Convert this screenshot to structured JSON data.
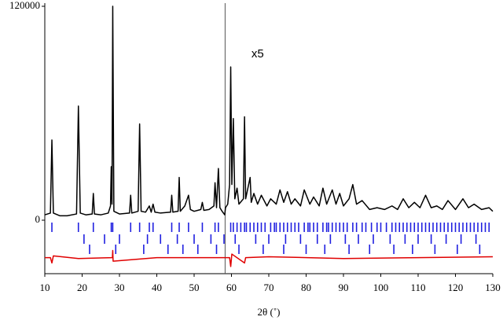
{
  "chart_data": {
    "type": "line",
    "xlabel": "2θ (˚)",
    "xlim": [
      10,
      130
    ],
    "xticks": [
      10,
      20,
      30,
      40,
      50,
      60,
      70,
      80,
      90,
      100,
      110,
      120,
      130
    ],
    "ylim": [
      -30000,
      120000
    ],
    "yticks": [
      0,
      120000
    ],
    "scale_break": 58.3,
    "annotation": {
      "text": "x5",
      "x": 67,
      "y": 93000
    },
    "series": [
      {
        "color": "#000000",
        "x": [
          10,
          11.5,
          11.9,
          12.3,
          14,
          16,
          18.5,
          19,
          19.5,
          21,
          22.7,
          23,
          23.3,
          25,
          27,
          27.6,
          27.8,
          28,
          28.2,
          28.5,
          30,
          32.7,
          33,
          33.3,
          35,
          35.4,
          35.8,
          37,
          38,
          38.5,
          39,
          39.5,
          41,
          43.7,
          44,
          44.3,
          45.7,
          46,
          46.3,
          47.5,
          48.5,
          49,
          50,
          51.8,
          52.2,
          52.6,
          54,
          55.3,
          55.6,
          56,
          56.5,
          56.9,
          57.5,
          58.2,
          58.4,
          59,
          59.5,
          59.8,
          60.1,
          60.5,
          60.9,
          61.5,
          62,
          63.2,
          63.5,
          63.8,
          65,
          65.3,
          66,
          67,
          68,
          69.5,
          70.5,
          72,
          73,
          74,
          75,
          76,
          77,
          78.5,
          79.5,
          81,
          82,
          83.5,
          84.5,
          85.5,
          87,
          88,
          89,
          90,
          91.5,
          92.5,
          93.5,
          95,
          97,
          99,
          101,
          103,
          104.5,
          106,
          107.5,
          109,
          110.5,
          112,
          113.5,
          115,
          116.5,
          118,
          120,
          122,
          123.5,
          125,
          127,
          129,
          130
        ],
        "values": [
          3000,
          4000,
          45000,
          4000,
          2500,
          2500,
          3500,
          64000,
          4000,
          3000,
          3500,
          15000,
          3500,
          3000,
          4000,
          8000,
          30000,
          9000,
          120000,
          5000,
          3500,
          4000,
          14000,
          4000,
          5000,
          54000,
          5000,
          4500,
          8000,
          4500,
          9000,
          4500,
          4000,
          4500,
          14000,
          4500,
          5000,
          24000,
          5000,
          8000,
          14000,
          6000,
          5000,
          6000,
          10000,
          5500,
          6000,
          8000,
          21000,
          7000,
          29000,
          7000,
          5000,
          3000,
          7000,
          9000,
          20000,
          86000,
          20000,
          57000,
          12000,
          18000,
          9000,
          12000,
          58000,
          12000,
          24000,
          10000,
          15000,
          9000,
          14000,
          8000,
          12000,
          9000,
          17000,
          10000,
          16000,
          9000,
          12000,
          8000,
          17000,
          9000,
          13000,
          8000,
          18000,
          9000,
          17000,
          9000,
          15000,
          8000,
          12000,
          20000,
          9000,
          11000,
          6000,
          7000,
          6000,
          8000,
          6000,
          12000,
          7000,
          10000,
          7000,
          14000,
          7000,
          8000,
          6000,
          11000,
          6000,
          12000,
          7000,
          9000,
          6000,
          7000,
          5000
        ]
      },
      {
        "color": "#e00000",
        "x": [
          10,
          11.5,
          11.9,
          12.3,
          19,
          28.1,
          28.2,
          28.3,
          40,
          58,
          59.5,
          59.8,
          60.1,
          63.5,
          63.8,
          70,
          90,
          110,
          130
        ],
        "values": [
          -21000,
          -21000,
          -24000,
          -20000,
          -21500,
          -21000,
          -17000,
          -23000,
          -21000,
          -21000,
          -21000,
          -26000,
          -19000,
          -24000,
          -21000,
          -20500,
          -21500,
          -21000,
          -20500
        ]
      }
    ],
    "reflections": [
      {
        "color": "#2020e0",
        "x": [
          11.9,
          19,
          23,
          27.8,
          28.2,
          33,
          35.4,
          38,
          39,
          44,
          46,
          48.5,
          52.2,
          55.6,
          56.5,
          59.8,
          60.5,
          61.5,
          62.5,
          63.5,
          64,
          65,
          66,
          67,
          68,
          69,
          70.5,
          71.5,
          72,
          73,
          74,
          75,
          76,
          77,
          78,
          79.5,
          80.5,
          81,
          82,
          83,
          84.5,
          85.5,
          86,
          87,
          88,
          89,
          90,
          91,
          92.5,
          93.5,
          95,
          96,
          97.5,
          99,
          100,
          101.5,
          103,
          104,
          105,
          106,
          107,
          108,
          109,
          110,
          111,
          112,
          113,
          114,
          115,
          116,
          117,
          118,
          119,
          120,
          121,
          122,
          123,
          124,
          125,
          126,
          127,
          128,
          129
        ]
      },
      {
        "color": "#2020e0",
        "x": [
          20.5,
          26,
          30,
          37.5,
          41,
          45.5,
          50,
          54.5,
          58,
          61,
          66.5,
          70,
          74.5,
          78.5,
          83,
          86.5,
          90.5,
          94,
          98,
          102.5,
          106.5,
          110,
          113.5,
          117.5,
          121.5,
          125.5
        ]
      },
      {
        "color": "#2020e0",
        "x": [
          22,
          29,
          36.5,
          43,
          47,
          51,
          56,
          62,
          68.5,
          74,
          80,
          85,
          91.5,
          97,
          103.5,
          108.5,
          114.5,
          120.5,
          126.5
        ]
      }
    ]
  }
}
